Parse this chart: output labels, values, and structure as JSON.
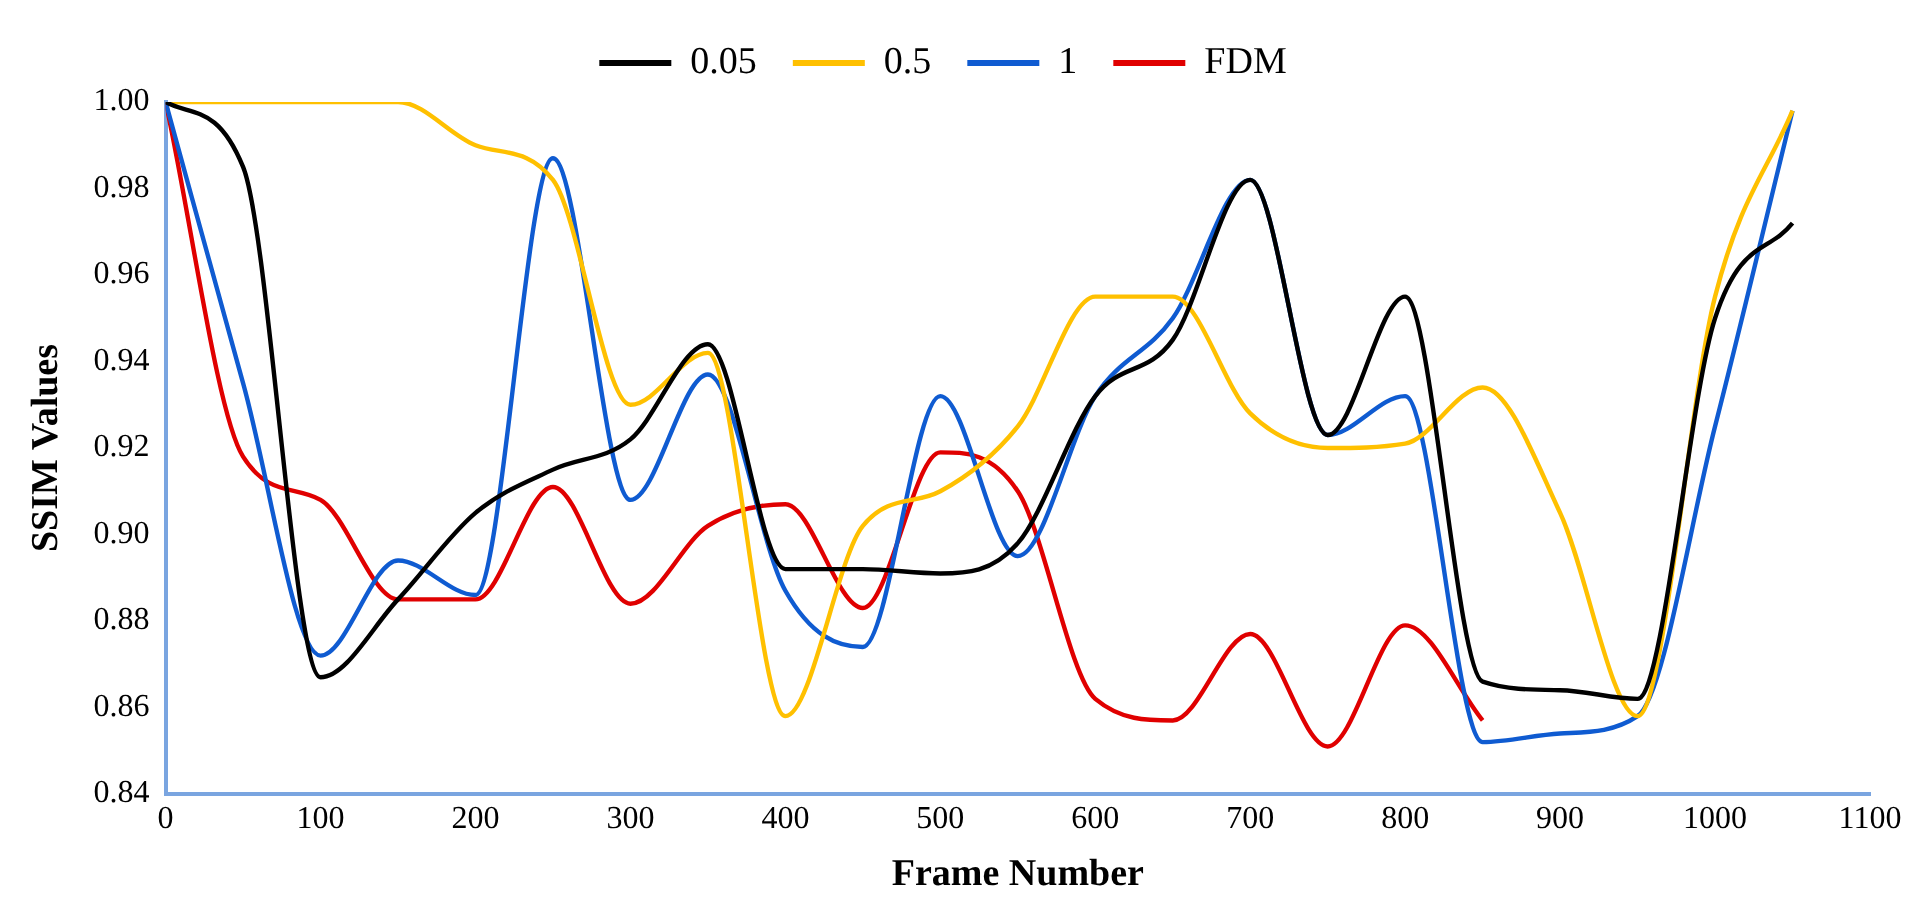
{
  "chart_data": {
    "type": "line",
    "xlabel": "Frame Number",
    "ylabel": "SSIM Values",
    "x": [
      0,
      50,
      100,
      150,
      200,
      250,
      300,
      350,
      400,
      450,
      500,
      550,
      600,
      650,
      700,
      750,
      800,
      850,
      900,
      950,
      1000,
      1050
    ],
    "series": [
      {
        "name": "0.05",
        "color": "#000000",
        "values": [
          1.0,
          0.985,
          0.867,
          0.885,
          0.905,
          0.915,
          0.922,
          0.944,
          0.892,
          0.892,
          0.891,
          0.898,
          0.932,
          0.945,
          0.982,
          0.923,
          0.955,
          0.866,
          0.864,
          0.862,
          0.95,
          0.972
        ]
      },
      {
        "name": "0.5",
        "color": "#ffc000",
        "values": [
          1.0,
          1.0,
          1.0,
          1.0,
          0.99,
          0.982,
          0.93,
          0.942,
          0.858,
          0.902,
          0.91,
          0.925,
          0.955,
          0.955,
          0.928,
          0.92,
          0.921,
          0.934,
          0.905,
          0.858,
          0.955,
          0.998
        ]
      },
      {
        "name": "1",
        "color": "#0f5bd1",
        "values": [
          1.0,
          0.935,
          0.872,
          0.894,
          0.886,
          0.987,
          0.908,
          0.937,
          0.887,
          0.874,
          0.932,
          0.895,
          0.932,
          0.95,
          0.982,
          0.923,
          0.932,
          0.852,
          0.854,
          0.858,
          0.925,
          0.998
        ]
      },
      {
        "name": "FDM",
        "color": "#e00000",
        "values": [
          1.0,
          0.918,
          0.908,
          0.885,
          0.885,
          0.911,
          0.884,
          0.902,
          0.907,
          0.883,
          0.919,
          0.91,
          0.862,
          0.857,
          0.877,
          0.851,
          0.879,
          0.857,
          null,
          null,
          null,
          null
        ]
      }
    ],
    "xlim": [
      0,
      1100
    ],
    "xticks": [
      0,
      100,
      200,
      300,
      400,
      500,
      600,
      700,
      800,
      900,
      1000,
      1100
    ],
    "ylim": [
      0.84,
      1.0
    ],
    "yticks": [
      {
        "value": 0.84,
        "label": "0.84"
      },
      {
        "value": 0.86,
        "label": "0.86"
      },
      {
        "value": 0.88,
        "label": "0.88"
      },
      {
        "value": 0.9,
        "label": "0.90"
      },
      {
        "value": 0.92,
        "label": "0.92"
      },
      {
        "value": 0.94,
        "label": "0.94"
      },
      {
        "value": 0.96,
        "label": "0.96"
      },
      {
        "value": 0.98,
        "label": "0.98"
      },
      {
        "value": 1.0,
        "label": "1.00"
      }
    ],
    "grid": false,
    "legend": "top",
    "marker": "none",
    "line_style": "solid"
  }
}
